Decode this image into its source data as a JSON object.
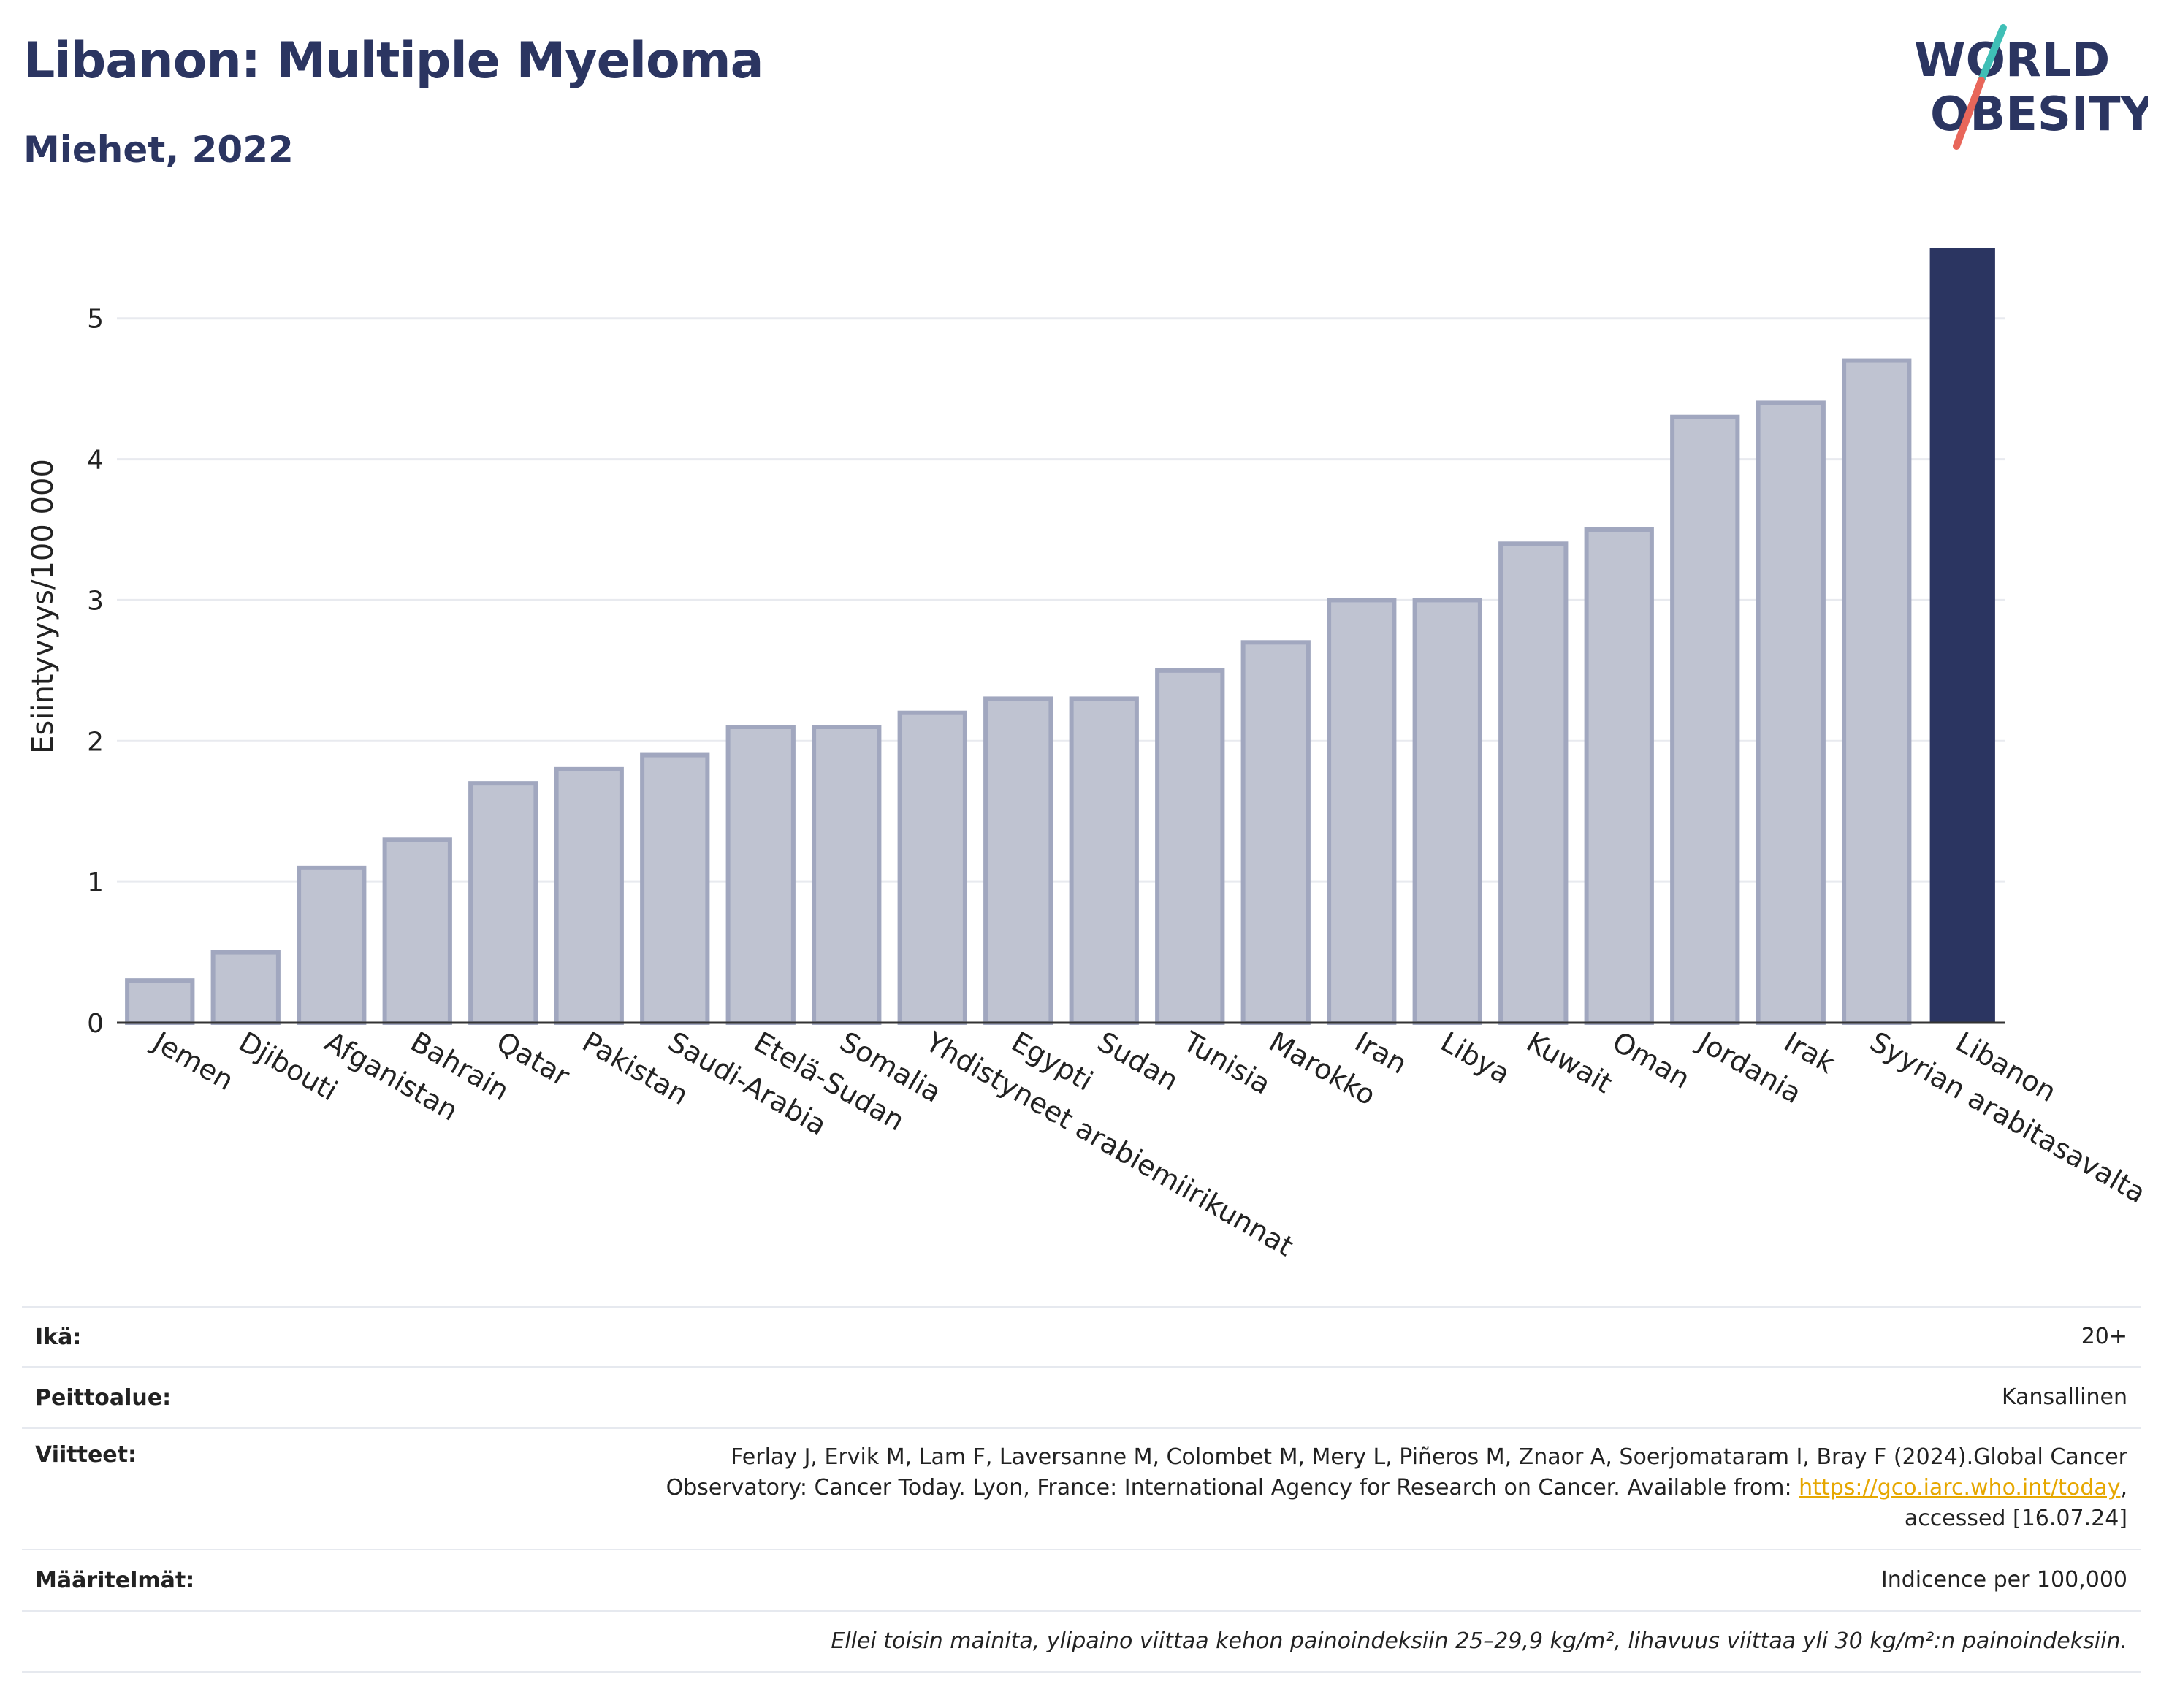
{
  "header": {
    "title": "Libanon: Multiple Myeloma",
    "subtitle": "Miehet, 2022"
  },
  "logo": {
    "line1": "WORLD",
    "line2": "OBESITY",
    "colors": {
      "text": "#2b3561",
      "slash_top": "#3fbfb6",
      "slash_bottom": "#e8665a"
    }
  },
  "colors": {
    "highlight": "#2b3561",
    "bar_fill": "#bfc3d1",
    "bar_stroke": "#a1a7bf",
    "grid": "#e8eaef",
    "axis": "#333333"
  },
  "chart_data": {
    "type": "bar",
    "title": "Libanon: Multiple Myeloma",
    "subtitle": "Miehet, 2022",
    "xlabel": "",
    "ylabel": "Esiintyvyys/100 000",
    "ylim": [
      0,
      5.6
    ],
    "yticks": [
      0,
      1,
      2,
      3,
      4,
      5
    ],
    "grid": true,
    "highlight_category": "Libanon",
    "categories": [
      "Jemen",
      "Djibouti",
      "Afganistan",
      "Bahrain",
      "Qatar",
      "Pakistan",
      "Saudi-Arabia",
      "Etelä-Sudan",
      "Somalia",
      "Yhdistyneet arabiemiirikunnat",
      "Egypti",
      "Sudan",
      "Tunisia",
      "Marokko",
      "Iran",
      "Libya",
      "Kuwait",
      "Oman",
      "Jordania",
      "Irak",
      "Syyrian arabitasavalta",
      "Libanon"
    ],
    "values": [
      0.3,
      0.5,
      1.1,
      1.3,
      1.7,
      1.8,
      1.9,
      2.1,
      2.1,
      2.2,
      2.3,
      2.3,
      2.5,
      2.7,
      3.0,
      3.0,
      3.4,
      3.5,
      4.3,
      4.4,
      4.7,
      5.5
    ]
  },
  "info": {
    "age_label": "Ikä:",
    "age_value": "20+",
    "coverage_label": "Peittoalue:",
    "coverage_value": "Kansallinen",
    "refs_label": "Viitteet:",
    "refs_line1": "Ferlay J, Ervik M, Lam F, Laversanne M, Colombet M, Mery L, Piñeros M, Znaor A, Soerjomataram I, Bray F (2024).Global Cancer",
    "refs_line2_pre": "Observatory: Cancer Today. Lyon, France: International Agency for Research on Cancer. Available from: ",
    "refs_link": "https://gco.iarc.who.int/today",
    "refs_line2_post": ",",
    "refs_line3": "accessed [16.07.24]",
    "defs_label": "Määritelmät:",
    "defs_value": "Indicence per 100,000",
    "note": "Ellei toisin mainita, ylipaino viittaa kehon painoindeksiin 25–29,9 kg/m², lihavuus viittaa yli 30 kg/m²:n painoindeksiin."
  }
}
